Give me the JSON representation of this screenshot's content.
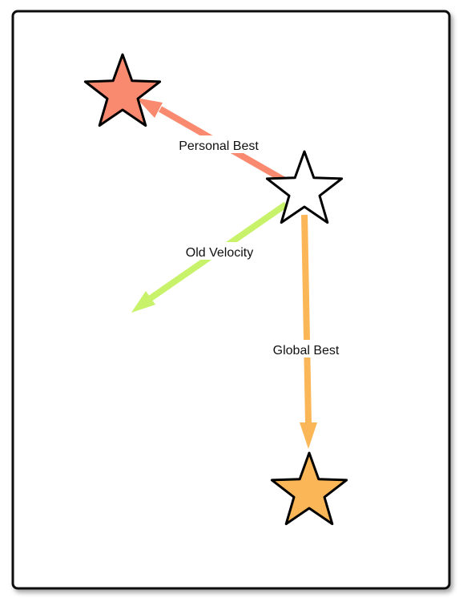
{
  "diagram": {
    "colors": {
      "frame_stroke": "#111111",
      "frame_fill": "#ffffff",
      "star_stroke": "#000000",
      "current_star_fill": "#ffffff",
      "personal_best_star_fill": "#f98a6f",
      "global_best_star_fill": "#fbb757",
      "personal_best_arrow": "#f98a6f",
      "old_velocity_arrow": "#c8f26a",
      "global_best_arrow": "#fbb757"
    },
    "nodes": [
      {
        "id": "current-position",
        "role": "current particle position",
        "fill_key": "current_star_fill"
      },
      {
        "id": "personal-best",
        "role": "personal best position",
        "fill_key": "personal_best_star_fill"
      },
      {
        "id": "global-best",
        "role": "global best position",
        "fill_key": "global_best_star_fill"
      }
    ],
    "edges": {
      "personal_best": {
        "label": "Personal Best",
        "from": "current-position",
        "to": "personal-best"
      },
      "old_velocity": {
        "label": "Old Velocity",
        "from": "current-position",
        "to": "open-end"
      },
      "global_best": {
        "label": "Global Best",
        "from": "current-position",
        "to": "global-best"
      }
    }
  }
}
